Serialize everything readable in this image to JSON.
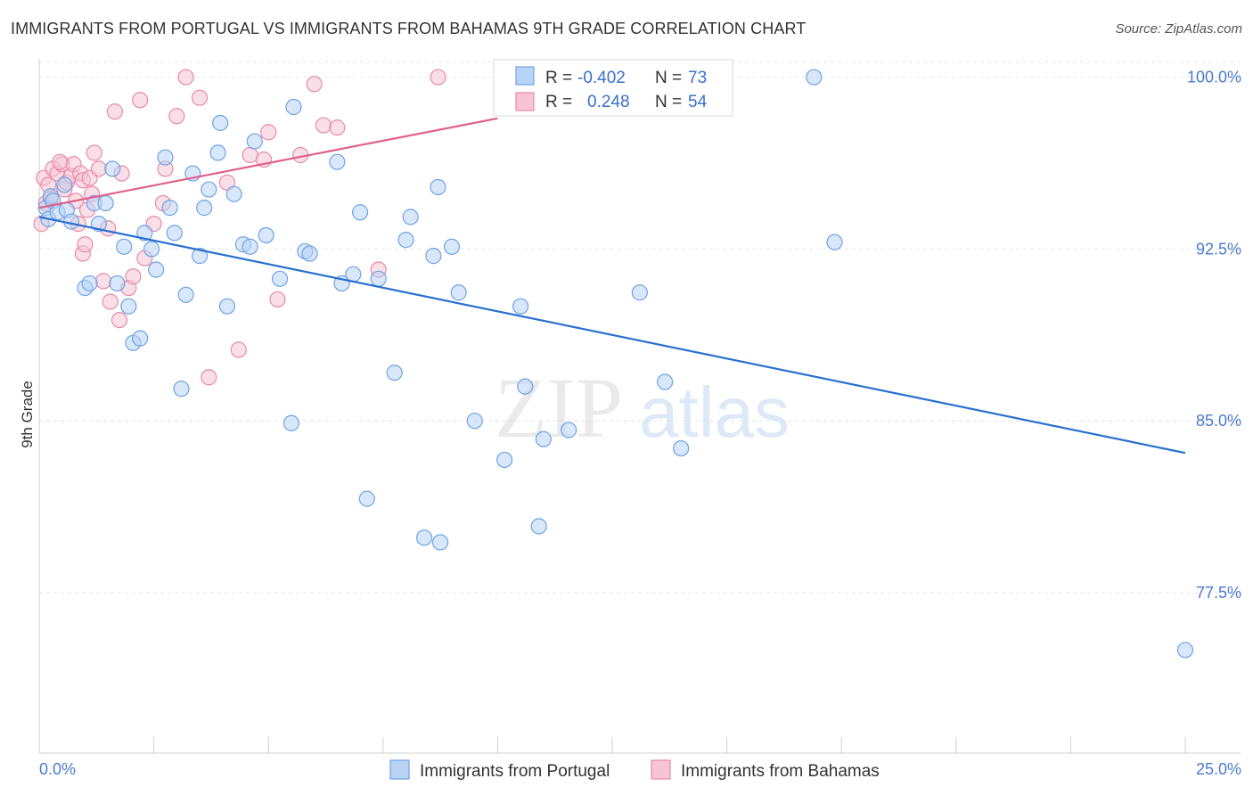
{
  "header": {
    "title": "IMMIGRANTS FROM PORTUGAL VS IMMIGRANTS FROM BAHAMAS 9TH GRADE CORRELATION CHART",
    "source": "Source: ZipAtlas.com"
  },
  "colors": {
    "portugal": "#6fa3e6",
    "portugal_fill": "#b8d3f4",
    "portugal_line": "#2a6fd0",
    "bahamas": "#e88aa8",
    "bahamas_fill": "#f6c4d3",
    "bahamas_line": "#e0608c",
    "grid": "#e6e6e6",
    "axis_text": "#4a7bd0"
  },
  "watermark": {
    "zip": "ZIP",
    "atlas": "atlas"
  },
  "legend_box": {
    "rows": [
      {
        "r_label": "R = ",
        "r_value": "-0.402",
        "n_label": "N = ",
        "n_value": "73"
      },
      {
        "r_label": "R = ",
        "r_value": "0.248",
        "n_label": "N = ",
        "n_value": "54"
      }
    ]
  },
  "chart_data": {
    "type": "scatter",
    "title": "IMMIGRANTS FROM PORTUGAL VS IMMIGRANTS FROM BAHAMAS 9TH GRADE CORRELATION CHART",
    "xlabel": "",
    "ylabel": "9th Grade",
    "xlim": [
      0,
      25
    ],
    "ylim": [
      70.5,
      100.8
    ],
    "x_tick_labels": [
      "0.0%",
      "25.0%"
    ],
    "y_ticks": [
      100.0,
      92.5,
      85.0,
      77.5
    ],
    "y_tick_labels": [
      "100.0%",
      "92.5%",
      "85.0%",
      "77.5%"
    ],
    "grid": true,
    "legend_position": "bottom",
    "series": [
      {
        "name": "Immigrants from Portugal",
        "r": -0.402,
        "n": 73,
        "trend": {
          "x": [
            0.0,
            25.0
          ],
          "y": [
            93.9,
            83.6
          ]
        },
        "points": [
          [
            0.15,
            94.3
          ],
          [
            0.2,
            93.8
          ],
          [
            0.25,
            94.8
          ],
          [
            0.3,
            94.6
          ],
          [
            0.4,
            94.1
          ],
          [
            0.55,
            95.3
          ],
          [
            0.6,
            94.2
          ],
          [
            0.7,
            93.7
          ],
          [
            1.0,
            90.8
          ],
          [
            1.1,
            91.0
          ],
          [
            1.2,
            94.5
          ],
          [
            1.3,
            93.6
          ],
          [
            1.45,
            94.5
          ],
          [
            1.6,
            96.0
          ],
          [
            1.7,
            91.0
          ],
          [
            1.85,
            92.6
          ],
          [
            1.95,
            90.0
          ],
          [
            2.05,
            88.4
          ],
          [
            2.2,
            88.6
          ],
          [
            2.3,
            93.2
          ],
          [
            2.45,
            92.5
          ],
          [
            2.55,
            91.6
          ],
          [
            2.75,
            96.5
          ],
          [
            2.85,
            94.3
          ],
          [
            2.95,
            93.2
          ],
          [
            3.1,
            86.4
          ],
          [
            3.2,
            90.5
          ],
          [
            3.35,
            95.8
          ],
          [
            3.5,
            92.2
          ],
          [
            3.6,
            94.3
          ],
          [
            3.7,
            95.1
          ],
          [
            3.9,
            96.7
          ],
          [
            3.95,
            98.0
          ],
          [
            4.1,
            90.0
          ],
          [
            4.25,
            94.9
          ],
          [
            4.45,
            92.7
          ],
          [
            4.6,
            92.6
          ],
          [
            4.7,
            97.2
          ],
          [
            4.95,
            93.1
          ],
          [
            5.25,
            91.2
          ],
          [
            5.5,
            84.9
          ],
          [
            5.55,
            98.7
          ],
          [
            5.8,
            92.4
          ],
          [
            5.9,
            92.3
          ],
          [
            6.5,
            96.3
          ],
          [
            6.6,
            91.0
          ],
          [
            6.85,
            91.4
          ],
          [
            7.0,
            94.1
          ],
          [
            7.15,
            81.6
          ],
          [
            7.4,
            91.2
          ],
          [
            7.75,
            87.1
          ],
          [
            8.0,
            92.9
          ],
          [
            8.1,
            93.9
          ],
          [
            8.4,
            79.9
          ],
          [
            8.6,
            92.2
          ],
          [
            8.7,
            95.2
          ],
          [
            8.75,
            79.7
          ],
          [
            9.0,
            92.6
          ],
          [
            9.15,
            90.6
          ],
          [
            9.5,
            85.0
          ],
          [
            10.15,
            83.3
          ],
          [
            10.5,
            90.0
          ],
          [
            10.6,
            86.5
          ],
          [
            10.9,
            80.4
          ],
          [
            11.0,
            84.2
          ],
          [
            11.55,
            84.6
          ],
          [
            13.1,
            90.6
          ],
          [
            13.65,
            86.7
          ],
          [
            14.0,
            83.8
          ],
          [
            14.2,
            100.0
          ],
          [
            16.9,
            100.0
          ],
          [
            17.35,
            92.8
          ],
          [
            25.0,
            75.0
          ]
        ]
      },
      {
        "name": "Immigrants from Bahamas",
        "r": 0.248,
        "n": 54,
        "trend": {
          "x": [
            0.0,
            10.0
          ],
          "y": [
            94.3,
            98.2
          ]
        },
        "points": [
          [
            0.05,
            93.6
          ],
          [
            0.1,
            95.6
          ],
          [
            0.15,
            94.5
          ],
          [
            0.2,
            95.3
          ],
          [
            0.25,
            94.7
          ],
          [
            0.3,
            96.0
          ],
          [
            0.4,
            95.8
          ],
          [
            0.5,
            96.2
          ],
          [
            0.55,
            95.1
          ],
          [
            0.6,
            95.4
          ],
          [
            0.7,
            95.7
          ],
          [
            0.75,
            96.2
          ],
          [
            0.8,
            94.6
          ],
          [
            0.85,
            93.6
          ],
          [
            0.9,
            95.8
          ],
          [
            0.95,
            95.5
          ],
          [
            0.95,
            92.3
          ],
          [
            1.0,
            92.7
          ],
          [
            1.05,
            94.2
          ],
          [
            1.1,
            95.6
          ],
          [
            1.2,
            96.7
          ],
          [
            1.3,
            96.0
          ],
          [
            1.4,
            91.1
          ],
          [
            1.5,
            93.4
          ],
          [
            1.55,
            90.2
          ],
          [
            1.65,
            98.5
          ],
          [
            1.75,
            89.4
          ],
          [
            1.8,
            95.8
          ],
          [
            1.95,
            90.8
          ],
          [
            2.05,
            91.3
          ],
          [
            2.2,
            99.0
          ],
          [
            2.3,
            92.1
          ],
          [
            2.5,
            93.6
          ],
          [
            2.7,
            94.5
          ],
          [
            2.75,
            96.0
          ],
          [
            3.0,
            98.3
          ],
          [
            3.2,
            100.0
          ],
          [
            3.5,
            99.1
          ],
          [
            3.7,
            86.9
          ],
          [
            4.1,
            95.4
          ],
          [
            4.35,
            88.1
          ],
          [
            4.6,
            96.6
          ],
          [
            4.9,
            96.4
          ],
          [
            5.0,
            97.6
          ],
          [
            5.2,
            90.3
          ],
          [
            5.7,
            96.6
          ],
          [
            6.0,
            99.7
          ],
          [
            6.2,
            97.9
          ],
          [
            6.5,
            97.8
          ],
          [
            7.4,
            91.6
          ],
          [
            8.7,
            100.0
          ],
          [
            10.6,
            100.0
          ],
          [
            0.45,
            96.3
          ],
          [
            1.15,
            94.9
          ]
        ]
      }
    ]
  },
  "bottom_legend": [
    {
      "label": "Immigrants from Portugal"
    },
    {
      "label": "Immigrants from Bahamas"
    }
  ]
}
